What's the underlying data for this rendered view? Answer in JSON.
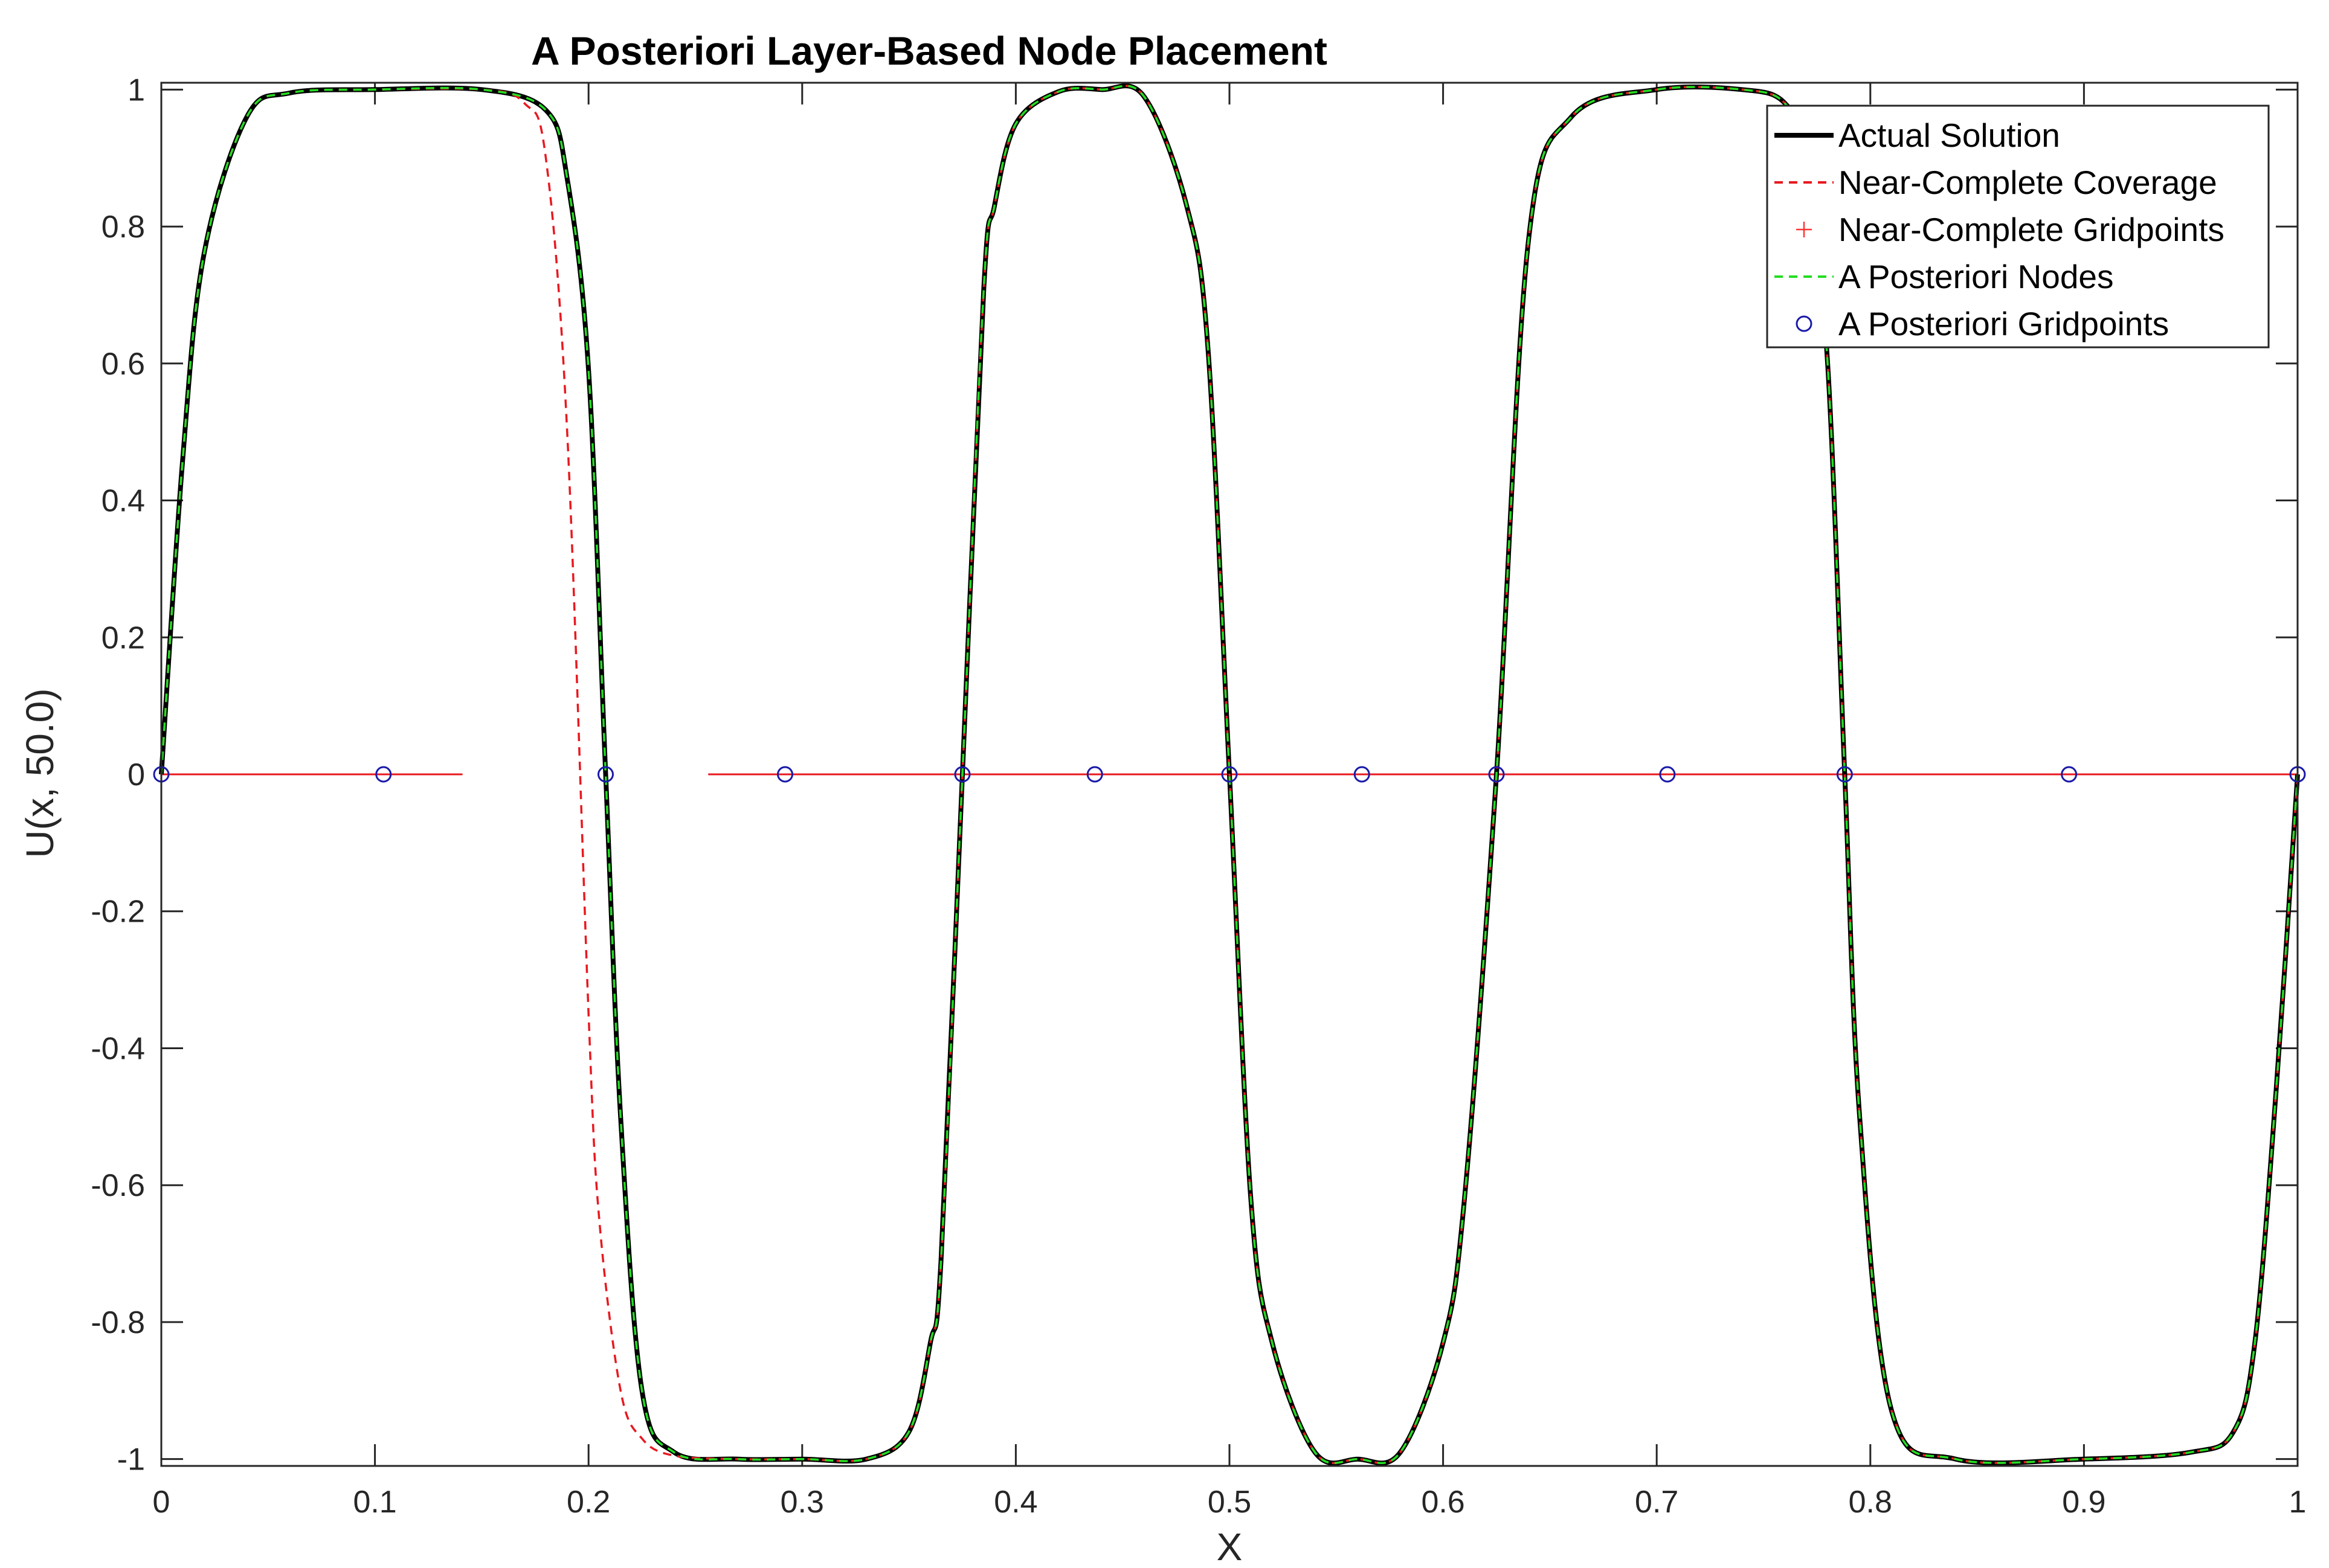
{
  "chart_data": {
    "type": "line",
    "title": "A Posteriori Layer-Based Node Placement",
    "xlabel": "X",
    "ylabel": "U(x, 50.0)",
    "xlim": [
      0,
      1
    ],
    "ylim": [
      -1.01,
      1.01
    ],
    "xticks": [
      0,
      0.1,
      0.2,
      0.3,
      0.4,
      0.5,
      0.6,
      0.7,
      0.8,
      0.9,
      1
    ],
    "xtick_labels": [
      "0",
      "0.1",
      "0.2",
      "0.3",
      "0.4",
      "0.5",
      "0.6",
      "0.7",
      "0.8",
      "0.9",
      "1"
    ],
    "yticks": [
      1,
      0.8,
      0.6,
      0.4,
      0.2,
      0,
      -0.2,
      -0.4,
      -0.6,
      -0.8,
      -1
    ],
    "ytick_labels": [
      "1",
      "0.8",
      "0.6",
      "0.4",
      "0.2",
      "0",
      "-0.2",
      "-0.4",
      "-0.6",
      "-0.8",
      "-1"
    ],
    "grid": false,
    "legend_position": "top-right",
    "colors": {
      "actual": "#000000",
      "near_coverage": "#e8191f",
      "near_gridpoints": "#ff3333",
      "aposteriori_nodes": "#22dd22",
      "aposteriori_gridpoints": "#1a1aaa",
      "axis": "#262626"
    },
    "series": [
      {
        "name": "Actual Solution",
        "style": "solid",
        "zero_crossings": [
          0,
          0.208,
          0.375,
          0.5,
          0.625,
          0.788,
          1
        ],
        "x": [
          0,
          0.01,
          0.02,
          0.04,
          0.06,
          0.1,
          0.15,
          0.18,
          0.19,
          0.2,
          0.208,
          0.215,
          0.225,
          0.24,
          0.27,
          0.3,
          0.33,
          0.35,
          0.36,
          0.365,
          0.375,
          0.385,
          0.39,
          0.4,
          0.42,
          0.44,
          0.46,
          0.48,
          0.49,
          0.5,
          0.51,
          0.52,
          0.54,
          0.56,
          0.58,
          0.6,
          0.61,
          0.625,
          0.64,
          0.66,
          0.7,
          0.74,
          0.76,
          0.77,
          0.78,
          0.788,
          0.795,
          0.81,
          0.84,
          0.9,
          0.95,
          0.97,
          0.98,
          0.99,
          1
        ],
        "values": [
          0,
          0.46,
          0.76,
          0.96,
          0.995,
          1,
          1,
          0.97,
          0.87,
          0.59,
          0,
          -0.5,
          -0.9,
          -0.99,
          -1,
          -1,
          -1,
          -0.96,
          -0.83,
          -0.71,
          0,
          0.71,
          0.83,
          0.95,
          0.997,
          1,
          0.99,
          0.83,
          0.62,
          0,
          -0.62,
          -0.83,
          -0.99,
          -1,
          -0.99,
          -0.83,
          -0.62,
          0,
          0.78,
          0.96,
          1,
          1,
          0.98,
          0.9,
          0.6,
          0,
          -0.5,
          -0.93,
          -1,
          -1,
          -0.99,
          -0.96,
          -0.83,
          -0.46,
          0
        ]
      },
      {
        "name": "Near-Complete Coverage",
        "style": "dashed",
        "x": [
          0,
          0.01,
          0.02,
          0.04,
          0.06,
          0.1,
          0.15,
          0.17,
          0.18,
          0.19,
          0.2,
          0.205,
          0.215,
          0.225,
          0.24,
          0.27,
          0.3,
          0.33,
          0.35,
          0.36,
          0.365,
          0.375,
          0.385,
          0.39,
          0.4,
          0.42,
          0.44,
          0.46,
          0.48,
          0.49,
          0.5,
          0.51,
          0.52,
          0.54,
          0.56,
          0.58,
          0.6,
          0.61,
          0.625,
          0.64,
          0.66,
          0.7,
          0.74,
          0.76,
          0.77,
          0.78,
          0.788,
          0.795,
          0.81,
          0.84,
          0.9,
          0.95,
          0.97,
          0.98,
          0.99,
          1
        ],
        "values": [
          0,
          0.46,
          0.76,
          0.96,
          0.995,
          1,
          1,
          0.98,
          0.9,
          0.5,
          -0.35,
          -0.65,
          -0.9,
          -0.97,
          -0.995,
          -1,
          -1,
          -1,
          -0.96,
          -0.83,
          -0.71,
          0,
          0.71,
          0.83,
          0.95,
          0.997,
          1,
          0.99,
          0.83,
          0.62,
          0,
          -0.62,
          -0.83,
          -0.99,
          -1,
          -0.99,
          -0.83,
          -0.62,
          0,
          0.78,
          0.96,
          1,
          1,
          0.98,
          0.9,
          0.6,
          0,
          -0.5,
          -0.93,
          -1,
          -1,
          -0.99,
          -0.96,
          -0.83,
          -0.46,
          0
        ]
      },
      {
        "name": "Near-Complete Gridpoints",
        "style": "plus-markers",
        "baseline": 0,
        "segments": [
          [
            0,
            0.141
          ],
          [
            0.256,
            1
          ]
        ]
      },
      {
        "name": "A Posteriori Nodes",
        "style": "dashed",
        "same_as": "Actual Solution"
      },
      {
        "name": "A Posteriori Gridpoints",
        "style": "circle-markers",
        "x": [
          0,
          0.104,
          0.208,
          0.292,
          0.375,
          0.437,
          0.5,
          0.562,
          0.625,
          0.705,
          0.788,
          0.893,
          1
        ],
        "values": [
          0,
          0,
          0,
          0,
          0,
          0,
          0,
          0,
          0,
          0,
          0,
          0,
          0
        ]
      }
    ]
  }
}
